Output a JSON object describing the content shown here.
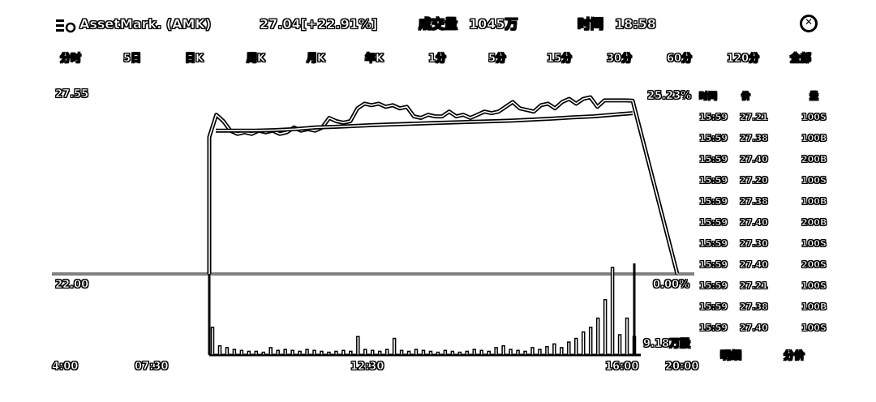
{
  "header": {
    "ticker": "AssetMark. (AMK)",
    "price_change": "27.04[+22.91%]",
    "volume_label": "成交量",
    "volume_value": "1045万",
    "time_label": "时间",
    "time_value": "18:58"
  },
  "tabs": [
    "分时",
    "5日",
    "日K",
    "周K",
    "月K",
    "年K",
    "1分",
    "5分",
    "15分",
    "30分",
    "60分",
    "120分",
    "全部"
  ],
  "chart": {
    "price_high": "27.55",
    "price_low": "22.00",
    "pct_high": "25.23%",
    "pct_low": "0.00%",
    "volume_label": "9.18万股",
    "x_labels": [
      "4:00",
      "07:30",
      "12:30",
      "16:00",
      "20:00"
    ]
  },
  "trades": {
    "headers": [
      "时间",
      "价",
      "量"
    ],
    "rows": [
      [
        "15:59",
        "27.21",
        "100S"
      ],
      [
        "15:59",
        "27.38",
        "100B"
      ],
      [
        "15:59",
        "27.40",
        "200B"
      ],
      [
        "15:59",
        "27.20",
        "100S"
      ],
      [
        "15:59",
        "27.38",
        "100B"
      ],
      [
        "15:59",
        "27.40",
        "200B"
      ],
      [
        "15:59",
        "27.30",
        "100S"
      ],
      [
        "15:59",
        "27.40",
        "200S"
      ],
      [
        "15:59",
        "27.21",
        "100S"
      ],
      [
        "15:59",
        "27.38",
        "100B"
      ],
      [
        "15:59",
        "27.40",
        "100S"
      ]
    ],
    "tab_detail": "明细",
    "tab_price": "分价"
  },
  "chart_data": {
    "type": "line",
    "ylim": [
      22.0,
      27.55
    ],
    "x_ticks": [
      "4:00",
      "07:30",
      "12:30",
      "16:00",
      "20:00"
    ],
    "series": [
      {
        "values": [
          26.3,
          27.0,
          26.8,
          26.5,
          26.4,
          26.45,
          26.4,
          26.5,
          26.45,
          26.5,
          26.4,
          26.45,
          26.6,
          26.5,
          26.55,
          26.5,
          26.6,
          26.9,
          26.8,
          26.75,
          26.8,
          27.2,
          27.35,
          27.3,
          27.35,
          27.25,
          27.3,
          27.2,
          27.25,
          26.95,
          26.9,
          27.0,
          26.95,
          26.95,
          27.1,
          26.95,
          27.0,
          26.9,
          27.0,
          27.1,
          27.05,
          27.1,
          27.25,
          27.4,
          27.2,
          27.15,
          27.1,
          27.3,
          27.35,
          27.2,
          27.4,
          27.5,
          27.35,
          27.5,
          27.55,
          27.25,
          27.45,
          27.45,
          27.45,
          27.45,
          27.44,
          22.0
        ]
      },
      {
        "values": [
          26.5,
          26.5,
          26.5,
          26.52,
          26.55,
          26.6,
          26.62,
          26.65,
          26.68,
          26.7,
          26.72,
          26.74,
          26.76,
          26.78,
          26.8,
          26.82,
          26.85,
          26.88,
          26.92,
          26.95,
          27.0,
          27.05
        ]
      }
    ],
    "volume": [
      30,
      10,
      8,
      6,
      5,
      4,
      4,
      3,
      8,
      5,
      6,
      5,
      4,
      6,
      5,
      4,
      3,
      4,
      5,
      4,
      20,
      6,
      5,
      4,
      6,
      18,
      5,
      4,
      6,
      5,
      4,
      3,
      5,
      4,
      3,
      4,
      6,
      5,
      4,
      8,
      10,
      6,
      5,
      4,
      8,
      6,
      9,
      12,
      8,
      14,
      18,
      25,
      30,
      40,
      60,
      95,
      22,
      40,
      20
    ]
  }
}
